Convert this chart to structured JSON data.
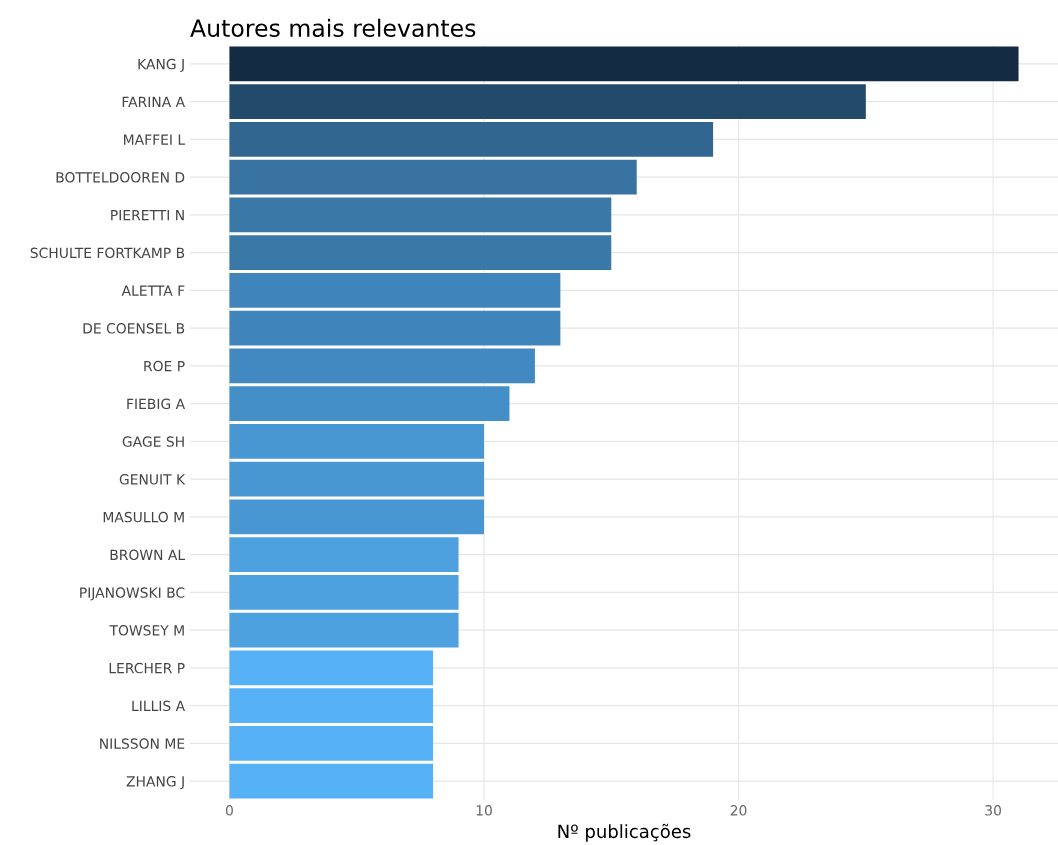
{
  "chart_data": {
    "type": "bar",
    "orientation": "horizontal",
    "title": "Autores mais relevantes",
    "xlabel": "Nº publicações",
    "categories": [
      "KANG J",
      "FARINA A",
      "MAFFEI L",
      "BOTTELDOOREN D",
      "PIERETTI N",
      "SCHULTE FORTKAMP B",
      "ALETTA F",
      "DE COENSEL B",
      "ROE P",
      "FIEBIG A",
      "GAGE SH",
      "GENUIT K",
      "MASULLO M",
      "BROWN AL",
      "PIJANOWSKI BC",
      "TOWSEY M",
      "LERCHER P",
      "LILLIS A",
      "NILSSON ME",
      "ZHANG J"
    ],
    "values": [
      31,
      25,
      19,
      16,
      15,
      15,
      13,
      13,
      12,
      11,
      10,
      10,
      10,
      9,
      9,
      9,
      8,
      8,
      8,
      8
    ],
    "colors": [
      "#132b43",
      "#224a6b",
      "#30668f",
      "#3873a2",
      "#3a78a8",
      "#3a78a8",
      "#3f84bb",
      "#3f84bb",
      "#4289c2",
      "#458fc9",
      "#4896d2",
      "#4896d2",
      "#4896d2",
      "#4ea1df",
      "#4ea1df",
      "#4ea1df",
      "#56b1f7",
      "#56b1f7",
      "#56b1f7",
      "#56b1f7"
    ],
    "xlim": [
      -1.55,
      32.55
    ],
    "xticks": [
      0,
      10,
      20,
      30
    ],
    "grid": true
  }
}
